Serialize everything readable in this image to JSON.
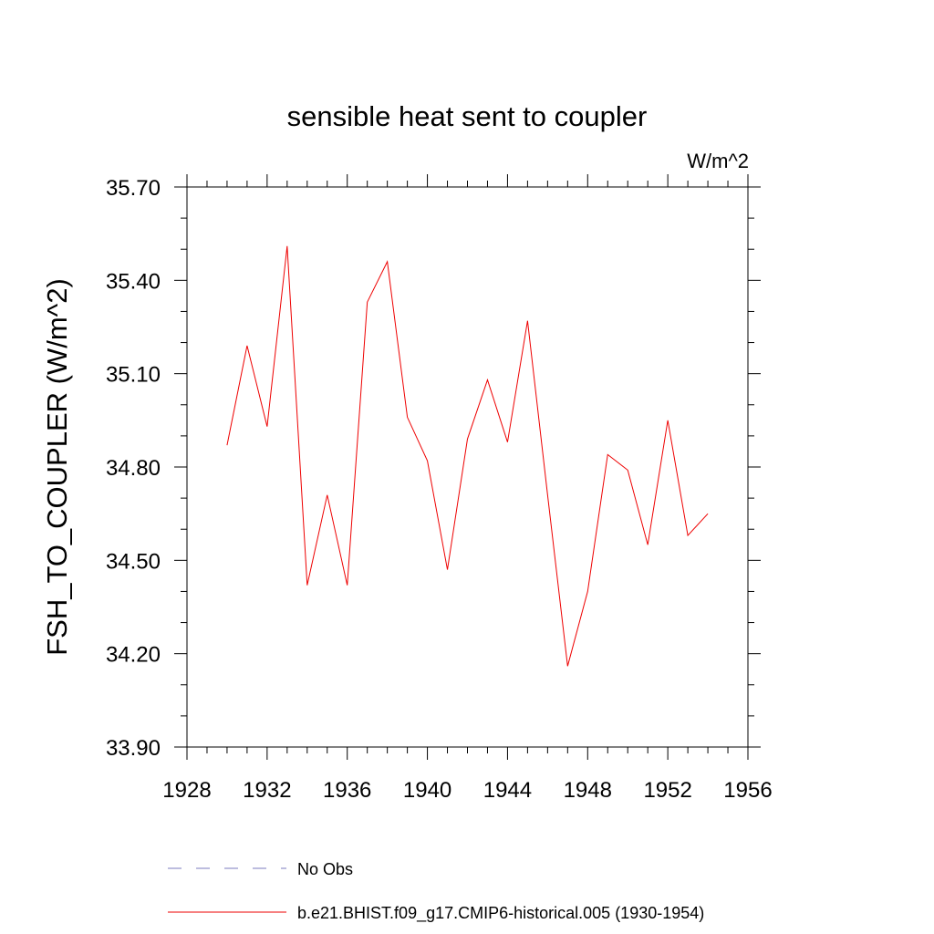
{
  "chart_data": {
    "type": "line",
    "title": "sensible heat sent to coupler",
    "units": "W/m^2",
    "xlabel": "",
    "ylabel": "FSH_TO_COUPLER  (W/m^2)",
    "xlim": [
      1928,
      1956
    ],
    "ylim": [
      33.9,
      35.7
    ],
    "x_major_ticks": [
      1928,
      1932,
      1936,
      1940,
      1944,
      1948,
      1952,
      1956
    ],
    "x_tick_labels": [
      "1928",
      "1932",
      "1936",
      "1940",
      "1944",
      "1948",
      "1952",
      "1956"
    ],
    "y_major_ticks": [
      33.9,
      34.2,
      34.5,
      34.8,
      35.1,
      35.4,
      35.7
    ],
    "y_tick_labels": [
      "33.90",
      "34.20",
      "34.50",
      "34.80",
      "35.10",
      "35.40",
      "35.70"
    ],
    "x_minor_step": 1,
    "y_minor_step": 0.1,
    "grid": false,
    "legend_position": "bottom",
    "series": [
      {
        "name": "No Obs",
        "color": "#7b7bbf",
        "dash": "dashed",
        "x": [],
        "y": []
      },
      {
        "name": "b.e21.BHIST.f09_g17.CMIP6-historical.005 (1930-1954)",
        "color": "#ee0000",
        "dash": "solid",
        "x": [
          1930,
          1931,
          1932,
          1933,
          1934,
          1935,
          1936,
          1937,
          1938,
          1939,
          1940,
          1941,
          1942,
          1943,
          1944,
          1945,
          1946,
          1947,
          1948,
          1949,
          1950,
          1951,
          1952,
          1953,
          1954
        ],
        "y": [
          34.87,
          35.19,
          34.93,
          35.51,
          34.42,
          34.71,
          34.42,
          35.33,
          35.46,
          34.96,
          34.82,
          34.47,
          34.89,
          35.08,
          34.88,
          35.27,
          34.71,
          34.16,
          34.4,
          34.84,
          34.79,
          34.55,
          34.95,
          34.58,
          34.65
        ]
      }
    ]
  }
}
